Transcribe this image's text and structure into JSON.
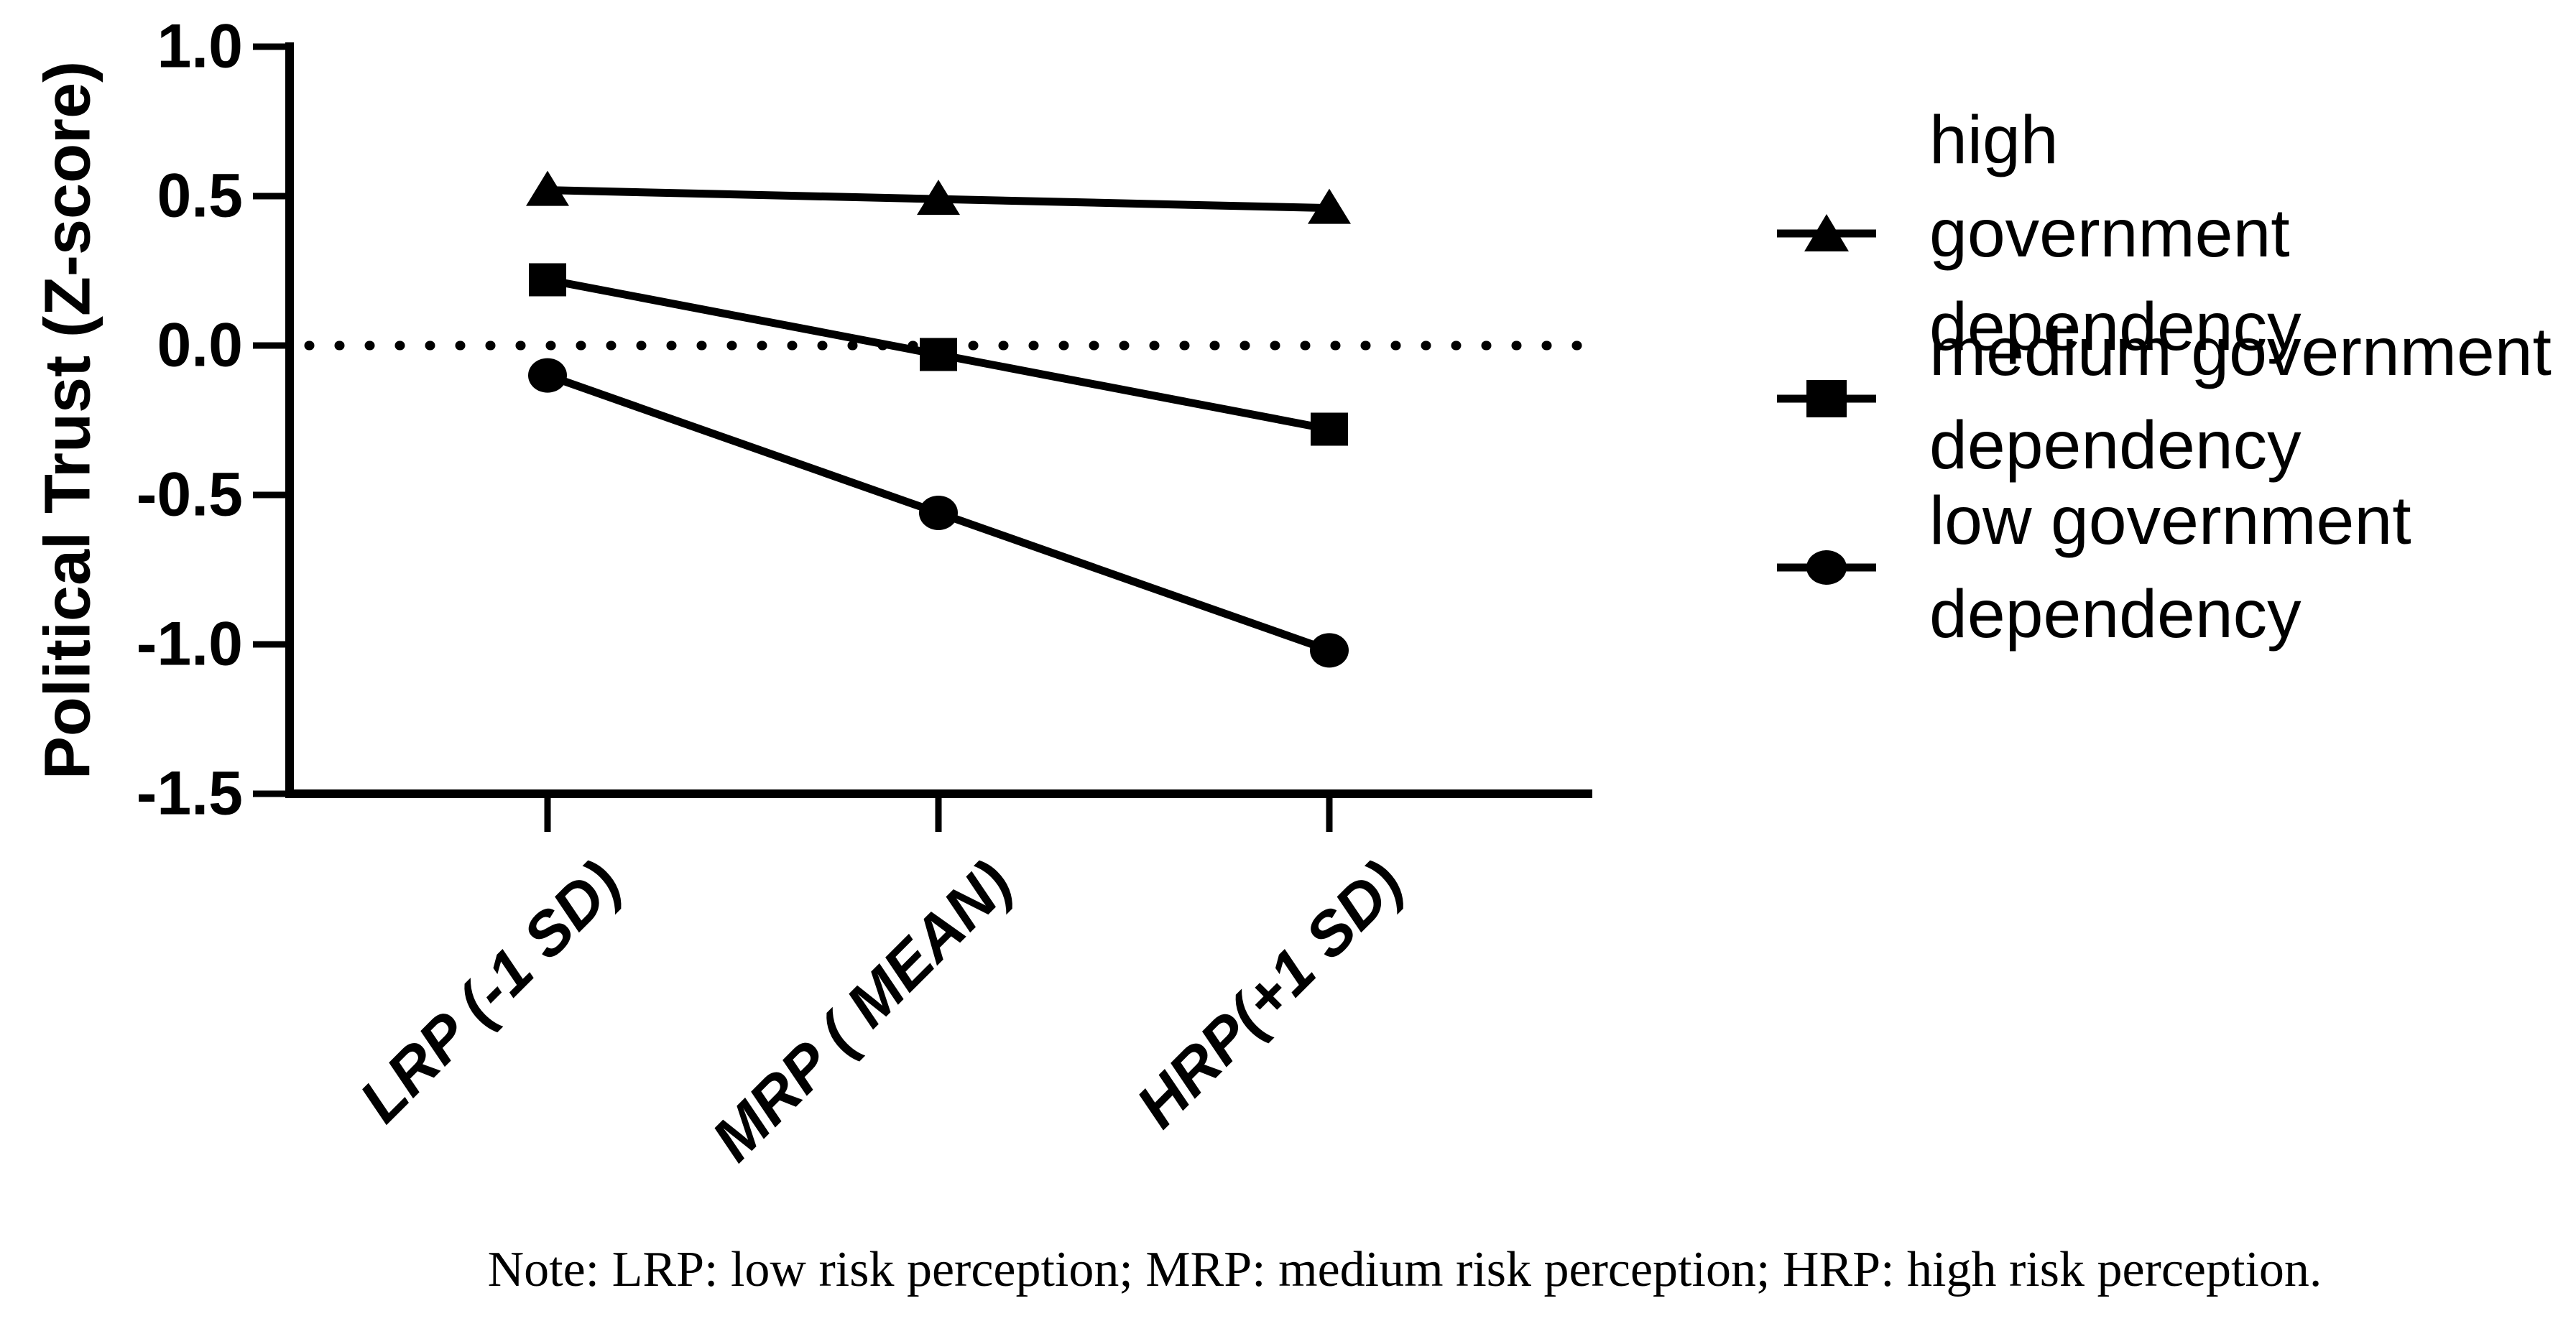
{
  "figure": {
    "background": "#ffffff",
    "ink_color": "#000000"
  },
  "chart_data": {
    "type": "line",
    "title": "",
    "categories": [
      "LRP (-1 SD)",
      "MRP ( MEAN)",
      "HRP(+1 SD)"
    ],
    "series": [
      {
        "name": "high government dependency",
        "legend_label": "high\ngovernment\ndependency",
        "marker": "triangle",
        "values": [
          0.52,
          0.49,
          0.46
        ]
      },
      {
        "name": "medium government dependency",
        "legend_label": "medium government\ndependency",
        "marker": "square",
        "values": [
          0.22,
          -0.03,
          -0.28
        ]
      },
      {
        "name": "low government dependency",
        "legend_label": "low government\ndependency",
        "marker": "circle",
        "values": [
          -0.1,
          -0.56,
          -1.02
        ]
      }
    ],
    "xlabel": "",
    "ylabel": "Political Trust (Z-score)",
    "ylim": [
      -1.5,
      1.0
    ],
    "yticks": [
      "1.0",
      "0.5",
      "0.0",
      "-0.5",
      "-1.0",
      "-1.5"
    ],
    "ytick_values": [
      1.0,
      0.5,
      0.0,
      -0.5,
      -1.0,
      -1.5
    ],
    "zero_reference_line": "dotted",
    "grid": false,
    "legend_position": "right",
    "line_color": "#000000"
  },
  "note": {
    "text": "Note: LRP: low risk perception; MRP: medium risk perception; HRP: high risk perception."
  }
}
